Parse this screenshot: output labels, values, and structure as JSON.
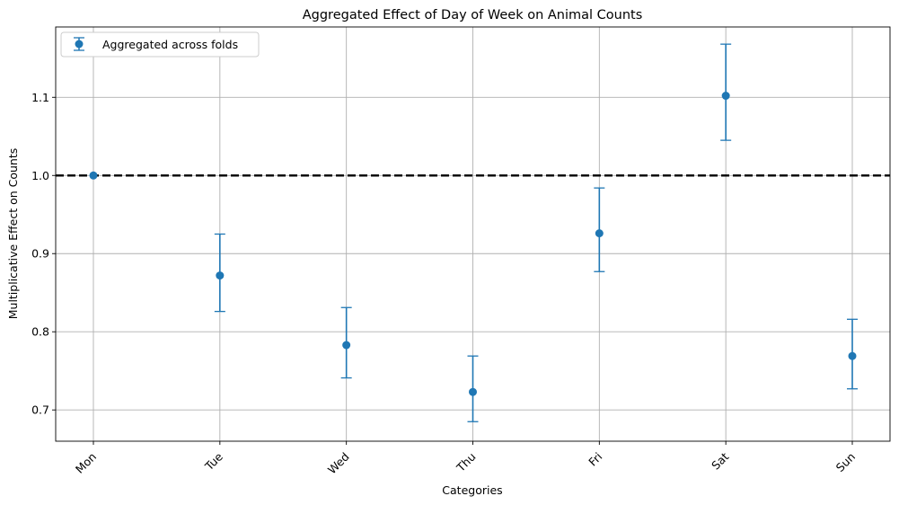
{
  "chart_data": {
    "type": "scatter",
    "title": "Aggregated Effect of Day of Week on Animal Counts",
    "xlabel": "Categories",
    "ylabel": "Multiplicative Effect on Counts",
    "categories": [
      "Mon",
      "Tue",
      "Wed",
      "Thu",
      "Fri",
      "Sat",
      "Sun"
    ],
    "series": [
      {
        "name": "Aggregated across folds",
        "values": [
          1.0,
          0.872,
          0.783,
          0.723,
          0.926,
          1.102,
          0.769
        ],
        "lower": [
          1.0,
          0.826,
          0.741,
          0.685,
          0.877,
          1.045,
          0.727
        ],
        "upper": [
          1.0,
          0.925,
          0.831,
          0.769,
          0.984,
          1.168,
          0.816
        ]
      }
    ],
    "reference_line": {
      "y": 1.0,
      "style": "dashed",
      "color": "#000000"
    },
    "ylim": [
      0.66,
      1.19
    ],
    "yticks": [
      "0.7",
      "0.8",
      "0.9",
      "1.0",
      "1.1"
    ],
    "ytick_values": [
      0.7,
      0.8,
      0.9,
      1.0,
      1.1
    ],
    "grid": true,
    "legend_position": "top-left",
    "colors": {
      "series": "#1f77b4",
      "grid": "#b0b0b0"
    }
  }
}
